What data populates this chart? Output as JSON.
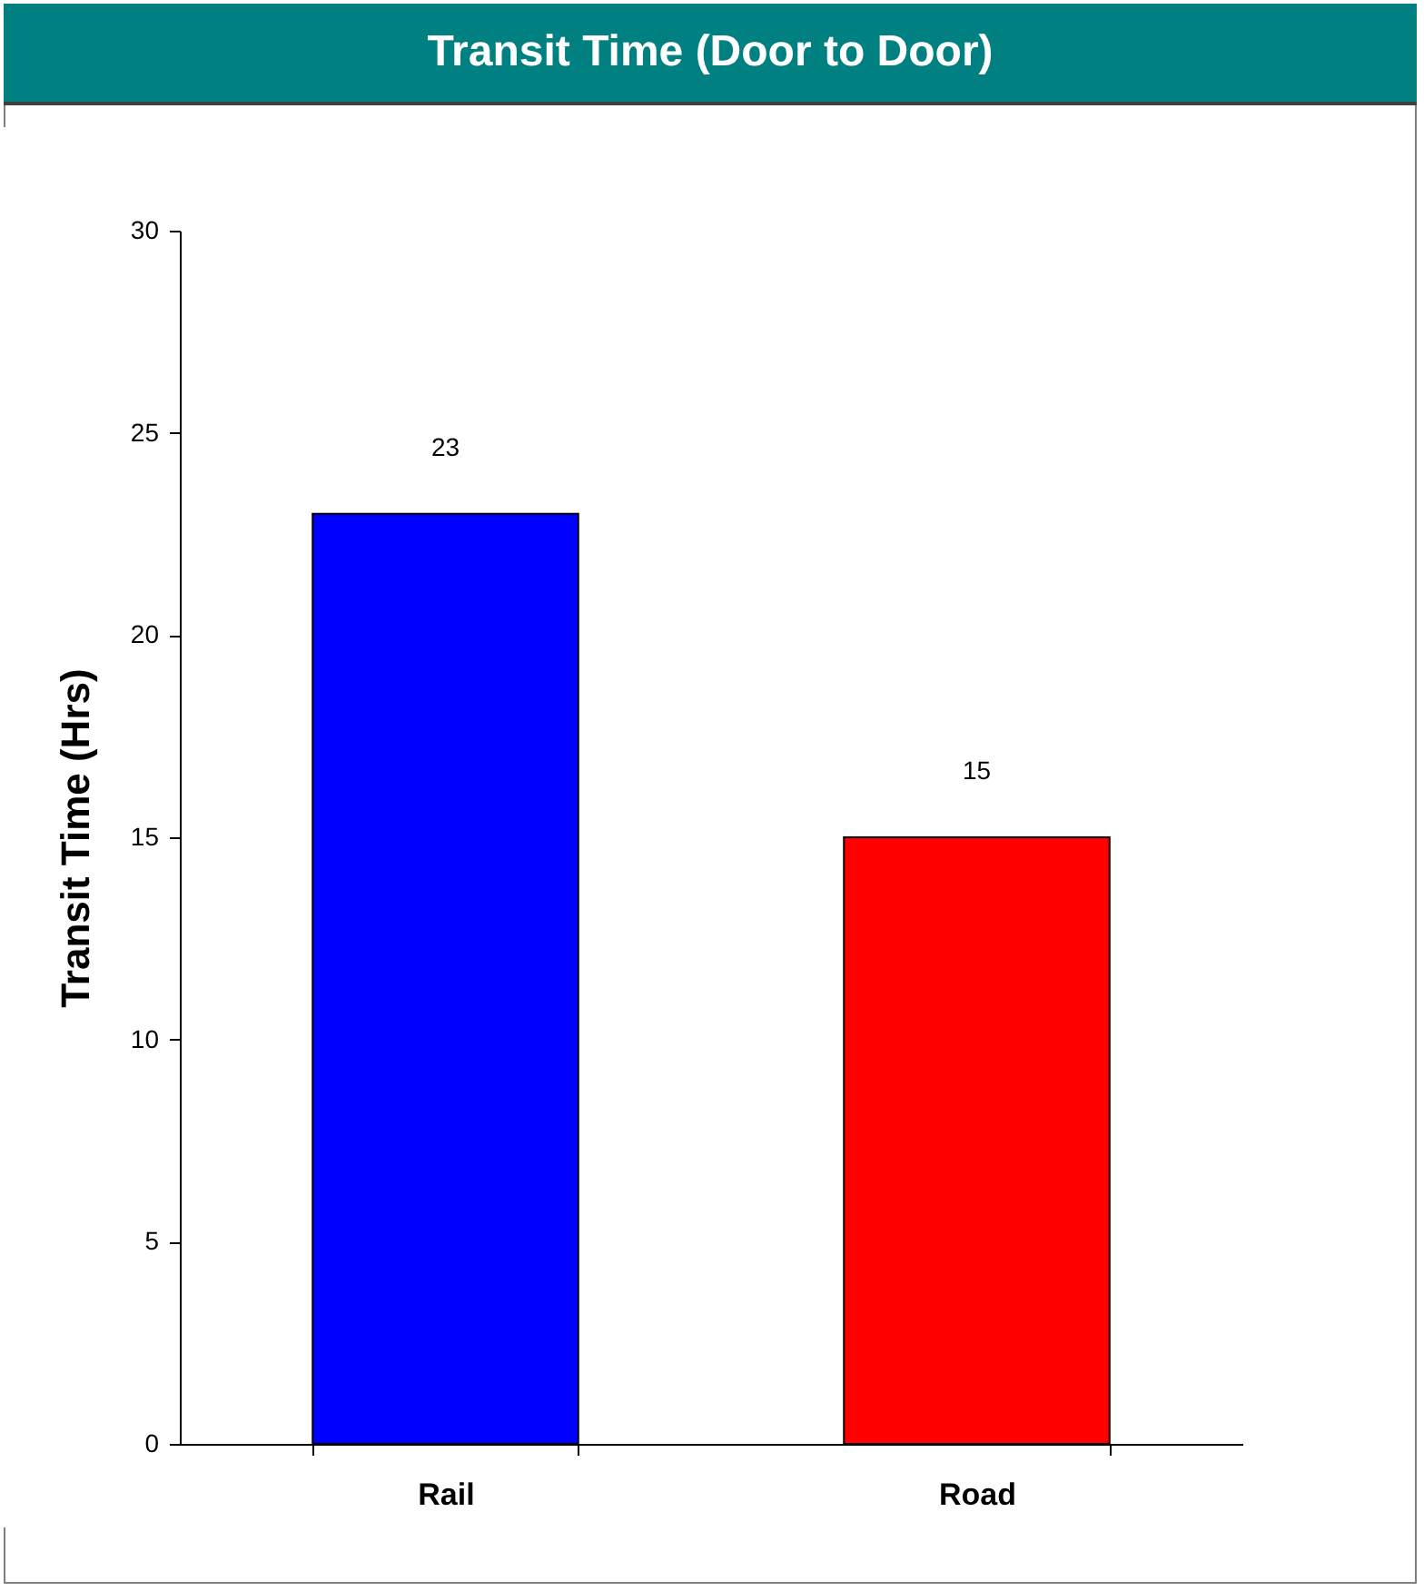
{
  "chart_data": {
    "type": "bar",
    "title": "Transit Time (Door to Door)",
    "ylabel": "Transit Time (Hrs)",
    "categories": [
      "Rail",
      "Road"
    ],
    "values": [
      23,
      15
    ],
    "colors": [
      "#0000ff",
      "#ff0000"
    ],
    "ylim": [
      0,
      30
    ],
    "yticks": [
      0,
      5,
      10,
      15,
      20,
      25,
      30
    ],
    "grid": false,
    "data_labels": true
  }
}
